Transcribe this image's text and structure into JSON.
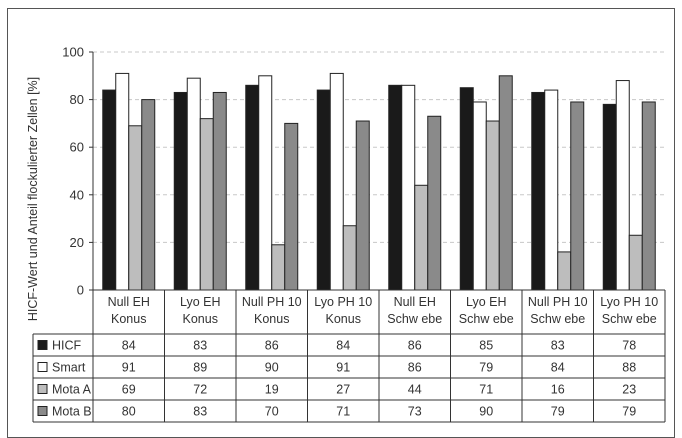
{
  "chart_data": {
    "type": "bar",
    "ylabel": "HICF-Wert und Anteil flockulierter Zellen [%]",
    "ylim": [
      0,
      100
    ],
    "yticks": [
      0,
      20,
      40,
      60,
      80,
      100
    ],
    "grid": true,
    "categories": [
      [
        "Null EH",
        "Konus"
      ],
      [
        "Lyo EH",
        "Konus"
      ],
      [
        "Null PH 10",
        "Konus"
      ],
      [
        "Lyo PH 10",
        "Konus"
      ],
      [
        "Null EH",
        "Schw ebe"
      ],
      [
        "Lyo EH",
        "Schw ebe"
      ],
      [
        "Null PH 10",
        "Schw ebe"
      ],
      [
        "Lyo PH 10",
        "Schw ebe"
      ]
    ],
    "series": [
      {
        "name": "HICF",
        "color": "#1a1a1a",
        "values": [
          84,
          83,
          86,
          84,
          86,
          85,
          83,
          78
        ]
      },
      {
        "name": "Smart",
        "color": "#ffffff",
        "values": [
          91,
          89,
          90,
          91,
          86,
          79,
          84,
          88
        ]
      },
      {
        "name": "Mota A",
        "color": "#bdbdbd",
        "values": [
          69,
          72,
          19,
          27,
          44,
          71,
          16,
          23
        ]
      },
      {
        "name": "Mota B",
        "color": "#8a8a8a",
        "values": [
          80,
          83,
          70,
          71,
          73,
          90,
          79,
          79
        ]
      }
    ]
  }
}
